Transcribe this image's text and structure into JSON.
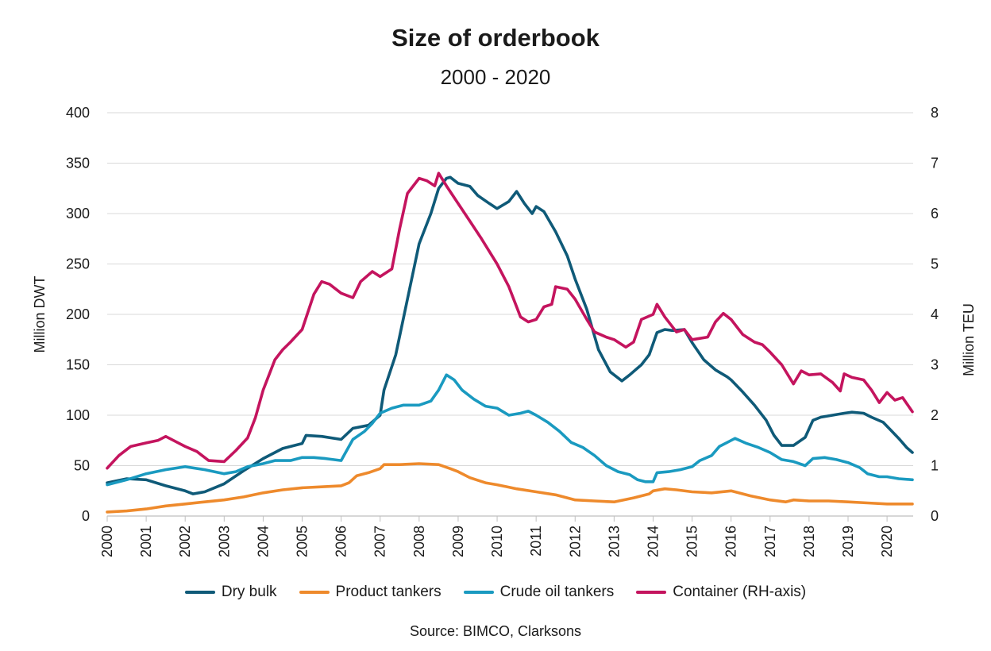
{
  "chart_data": {
    "type": "line",
    "title": "Size of orderbook",
    "subtitle": "2000 - 2020",
    "ylabel": "Million DWT",
    "ylabel_right": "Million TEU",
    "ylim": [
      0,
      400
    ],
    "ylim_right": [
      0,
      8
    ],
    "yticks": [
      0,
      50,
      100,
      150,
      200,
      250,
      300,
      350,
      400
    ],
    "yticks_right": [
      0,
      1,
      2,
      3,
      4,
      5,
      6,
      7,
      8
    ],
    "xlim": [
      2000,
      2020.67
    ],
    "xticks": [
      "2000",
      "2001",
      "2002",
      "2003",
      "2004",
      "2005",
      "2006",
      "2007",
      "2008",
      "2009",
      "2010",
      "2011",
      "2012",
      "2013",
      "2014",
      "2015",
      "2016",
      "2017",
      "2018",
      "2019",
      "2020"
    ],
    "grid": "horizontal",
    "legend_position": "bottom",
    "source": "Source: BIMCO, Clarksons",
    "series": [
      {
        "name": "Dry bulk",
        "color": "#0f5a78",
        "axis": "left",
        "points": [
          [
            2000,
            33
          ],
          [
            2000.5,
            37
          ],
          [
            2001,
            36
          ],
          [
            2001.5,
            30
          ],
          [
            2002,
            25
          ],
          [
            2002.2,
            22
          ],
          [
            2002.5,
            24
          ],
          [
            2003,
            32
          ],
          [
            2003.5,
            45
          ],
          [
            2004,
            57
          ],
          [
            2004.5,
            67
          ],
          [
            2005,
            72
          ],
          [
            2005.1,
            80
          ],
          [
            2005.5,
            79
          ],
          [
            2006,
            76
          ],
          [
            2006.3,
            87
          ],
          [
            2006.7,
            90
          ],
          [
            2007,
            100
          ],
          [
            2007.1,
            125
          ],
          [
            2007.4,
            160
          ],
          [
            2007.7,
            215
          ],
          [
            2008,
            270
          ],
          [
            2008.3,
            300
          ],
          [
            2008.5,
            325
          ],
          [
            2008.7,
            335
          ],
          [
            2008.8,
            336
          ],
          [
            2009,
            330
          ],
          [
            2009.3,
            327
          ],
          [
            2009.5,
            318
          ],
          [
            2009.8,
            310
          ],
          [
            2010,
            305
          ],
          [
            2010.3,
            312
          ],
          [
            2010.5,
            322
          ],
          [
            2010.7,
            310
          ],
          [
            2010.9,
            300
          ],
          [
            2011,
            307
          ],
          [
            2011.2,
            302
          ],
          [
            2011.5,
            282
          ],
          [
            2011.8,
            258
          ],
          [
            2012,
            235
          ],
          [
            2012.3,
            205
          ],
          [
            2012.6,
            165
          ],
          [
            2012.9,
            143
          ],
          [
            2013.2,
            134
          ],
          [
            2013.4,
            140
          ],
          [
            2013.7,
            150
          ],
          [
            2013.9,
            160
          ],
          [
            2014.1,
            182
          ],
          [
            2014.3,
            185
          ],
          [
            2014.5,
            184
          ],
          [
            2014.8,
            185
          ],
          [
            2015,
            172
          ],
          [
            2015.3,
            155
          ],
          [
            2015.6,
            145
          ],
          [
            2015.9,
            138
          ],
          [
            2016,
            135
          ],
          [
            2016.3,
            123
          ],
          [
            2016.6,
            110
          ],
          [
            2016.9,
            95
          ],
          [
            2017.1,
            80
          ],
          [
            2017.3,
            70
          ],
          [
            2017.6,
            70
          ],
          [
            2017.9,
            78
          ],
          [
            2018.1,
            95
          ],
          [
            2018.3,
            98
          ],
          [
            2018.6,
            100
          ],
          [
            2018.9,
            102
          ],
          [
            2019.1,
            103
          ],
          [
            2019.4,
            102
          ],
          [
            2019.6,
            98
          ],
          [
            2019.9,
            93
          ],
          [
            2020.1,
            85
          ],
          [
            2020.3,
            77
          ],
          [
            2020.5,
            68
          ],
          [
            2020.65,
            63
          ]
        ]
      },
      {
        "name": "Product tankers",
        "color": "#ee8a2c",
        "axis": "left",
        "points": [
          [
            2000,
            4
          ],
          [
            2000.5,
            5
          ],
          [
            2001,
            7
          ],
          [
            2001.5,
            10
          ],
          [
            2002,
            12
          ],
          [
            2002.5,
            14
          ],
          [
            2003,
            16
          ],
          [
            2003.5,
            19
          ],
          [
            2004,
            23
          ],
          [
            2004.5,
            26
          ],
          [
            2005,
            28
          ],
          [
            2005.5,
            29
          ],
          [
            2006,
            30
          ],
          [
            2006.2,
            33
          ],
          [
            2006.4,
            40
          ],
          [
            2006.7,
            43
          ],
          [
            2007,
            47
          ],
          [
            2007.1,
            51
          ],
          [
            2007.5,
            51
          ],
          [
            2008,
            52
          ],
          [
            2008.5,
            51
          ],
          [
            2008.8,
            47
          ],
          [
            2009,
            44
          ],
          [
            2009.3,
            38
          ],
          [
            2009.7,
            33
          ],
          [
            2010,
            31
          ],
          [
            2010.5,
            27
          ],
          [
            2011,
            24
          ],
          [
            2011.5,
            21
          ],
          [
            2011.8,
            18
          ],
          [
            2012,
            16
          ],
          [
            2012.5,
            15
          ],
          [
            2013,
            14
          ],
          [
            2013.5,
            18
          ],
          [
            2013.9,
            22
          ],
          [
            2014,
            25
          ],
          [
            2014.3,
            27
          ],
          [
            2014.6,
            26
          ],
          [
            2015,
            24
          ],
          [
            2015.5,
            23
          ],
          [
            2016,
            25
          ],
          [
            2016.5,
            20
          ],
          [
            2017,
            16
          ],
          [
            2017.4,
            14
          ],
          [
            2017.6,
            16
          ],
          [
            2018,
            15
          ],
          [
            2018.5,
            15
          ],
          [
            2019,
            14
          ],
          [
            2019.5,
            13
          ],
          [
            2020,
            12
          ],
          [
            2020.65,
            12
          ]
        ]
      },
      {
        "name": "Crude oil tankers",
        "color": "#1a9ac0",
        "axis": "left",
        "points": [
          [
            2000,
            31
          ],
          [
            2000.5,
            36
          ],
          [
            2001,
            42
          ],
          [
            2001.5,
            46
          ],
          [
            2002,
            49
          ],
          [
            2002.5,
            46
          ],
          [
            2003,
            42
          ],
          [
            2003.3,
            44
          ],
          [
            2003.6,
            49
          ],
          [
            2004,
            52
          ],
          [
            2004.3,
            55
          ],
          [
            2004.7,
            55
          ],
          [
            2005,
            58
          ],
          [
            2005.3,
            58
          ],
          [
            2005.6,
            57
          ],
          [
            2006,
            55
          ],
          [
            2006.1,
            62
          ],
          [
            2006.3,
            76
          ],
          [
            2006.6,
            84
          ],
          [
            2006.8,
            92
          ],
          [
            2007,
            102
          ],
          [
            2007.3,
            107
          ],
          [
            2007.6,
            110
          ],
          [
            2008,
            110
          ],
          [
            2008.3,
            114
          ],
          [
            2008.5,
            125
          ],
          [
            2008.7,
            140
          ],
          [
            2008.9,
            135
          ],
          [
            2009.1,
            125
          ],
          [
            2009.4,
            116
          ],
          [
            2009.7,
            109
          ],
          [
            2010,
            107
          ],
          [
            2010.3,
            100
          ],
          [
            2010.6,
            102
          ],
          [
            2010.8,
            104
          ],
          [
            2011,
            100
          ],
          [
            2011.3,
            93
          ],
          [
            2011.6,
            84
          ],
          [
            2011.9,
            73
          ],
          [
            2012.2,
            68
          ],
          [
            2012.5,
            60
          ],
          [
            2012.8,
            50
          ],
          [
            2013.1,
            44
          ],
          [
            2013.4,
            41
          ],
          [
            2013.6,
            36
          ],
          [
            2013.8,
            34
          ],
          [
            2014,
            34
          ],
          [
            2014.1,
            43
          ],
          [
            2014.4,
            44
          ],
          [
            2014.7,
            46
          ],
          [
            2015,
            49
          ],
          [
            2015.2,
            55
          ],
          [
            2015.5,
            60
          ],
          [
            2015.7,
            69
          ],
          [
            2015.9,
            73
          ],
          [
            2016.1,
            77
          ],
          [
            2016.4,
            72
          ],
          [
            2016.7,
            68
          ],
          [
            2017,
            63
          ],
          [
            2017.3,
            56
          ],
          [
            2017.6,
            54
          ],
          [
            2017.9,
            50
          ],
          [
            2018.1,
            57
          ],
          [
            2018.4,
            58
          ],
          [
            2018.7,
            56
          ],
          [
            2019,
            53
          ],
          [
            2019.3,
            48
          ],
          [
            2019.5,
            42
          ],
          [
            2019.8,
            39
          ],
          [
            2020,
            39
          ],
          [
            2020.3,
            37
          ],
          [
            2020.65,
            36
          ]
        ]
      },
      {
        "name": "Container (RH-axis)",
        "color": "#c4145e",
        "axis": "right",
        "points": [
          [
            2000,
            0.95
          ],
          [
            2000.3,
            1.2
          ],
          [
            2000.6,
            1.38
          ],
          [
            2001,
            1.45
          ],
          [
            2001.3,
            1.5
          ],
          [
            2001.5,
            1.58
          ],
          [
            2001.8,
            1.46
          ],
          [
            2002,
            1.38
          ],
          [
            2002.3,
            1.28
          ],
          [
            2002.6,
            1.1
          ],
          [
            2003,
            1.08
          ],
          [
            2003.3,
            1.3
          ],
          [
            2003.6,
            1.55
          ],
          [
            2003.8,
            1.95
          ],
          [
            2004,
            2.5
          ],
          [
            2004.3,
            3.1
          ],
          [
            2004.5,
            3.3
          ],
          [
            2004.7,
            3.45
          ],
          [
            2005,
            3.7
          ],
          [
            2005.3,
            4.4
          ],
          [
            2005.5,
            4.65
          ],
          [
            2005.7,
            4.6
          ],
          [
            2006,
            4.42
          ],
          [
            2006.3,
            4.33
          ],
          [
            2006.5,
            4.65
          ],
          [
            2006.8,
            4.85
          ],
          [
            2007,
            4.75
          ],
          [
            2007.3,
            4.9
          ],
          [
            2007.5,
            5.7
          ],
          [
            2007.7,
            6.4
          ],
          [
            2008,
            6.7
          ],
          [
            2008.2,
            6.65
          ],
          [
            2008.4,
            6.55
          ],
          [
            2008.5,
            6.8
          ],
          [
            2008.7,
            6.55
          ],
          [
            2009,
            6.2
          ],
          [
            2009.3,
            5.85
          ],
          [
            2009.6,
            5.5
          ],
          [
            2010,
            5.0
          ],
          [
            2010.3,
            4.55
          ],
          [
            2010.6,
            3.95
          ],
          [
            2010.8,
            3.85
          ],
          [
            2011,
            3.9
          ],
          [
            2011.2,
            4.15
          ],
          [
            2011.4,
            4.2
          ],
          [
            2011.5,
            4.55
          ],
          [
            2011.8,
            4.5
          ],
          [
            2012,
            4.3
          ],
          [
            2012.3,
            3.9
          ],
          [
            2012.5,
            3.65
          ],
          [
            2012.8,
            3.55
          ],
          [
            2013,
            3.5
          ],
          [
            2013.3,
            3.35
          ],
          [
            2013.5,
            3.45
          ],
          [
            2013.7,
            3.9
          ],
          [
            2014,
            4.0
          ],
          [
            2014.1,
            4.2
          ],
          [
            2014.3,
            3.95
          ],
          [
            2014.6,
            3.65
          ],
          [
            2014.8,
            3.7
          ],
          [
            2015,
            3.5
          ],
          [
            2015.4,
            3.55
          ],
          [
            2015.6,
            3.85
          ],
          [
            2015.8,
            4.02
          ],
          [
            2016,
            3.9
          ],
          [
            2016.3,
            3.6
          ],
          [
            2016.6,
            3.45
          ],
          [
            2016.8,
            3.4
          ],
          [
            2017,
            3.25
          ],
          [
            2017.3,
            3.0
          ],
          [
            2017.6,
            2.62
          ],
          [
            2017.8,
            2.88
          ],
          [
            2018,
            2.8
          ],
          [
            2018.3,
            2.82
          ],
          [
            2018.6,
            2.65
          ],
          [
            2018.8,
            2.48
          ],
          [
            2018.9,
            2.82
          ],
          [
            2019.1,
            2.75
          ],
          [
            2019.4,
            2.7
          ],
          [
            2019.6,
            2.5
          ],
          [
            2019.8,
            2.25
          ],
          [
            2020,
            2.45
          ],
          [
            2020.2,
            2.3
          ],
          [
            2020.4,
            2.35
          ],
          [
            2020.65,
            2.07
          ]
        ]
      }
    ]
  }
}
